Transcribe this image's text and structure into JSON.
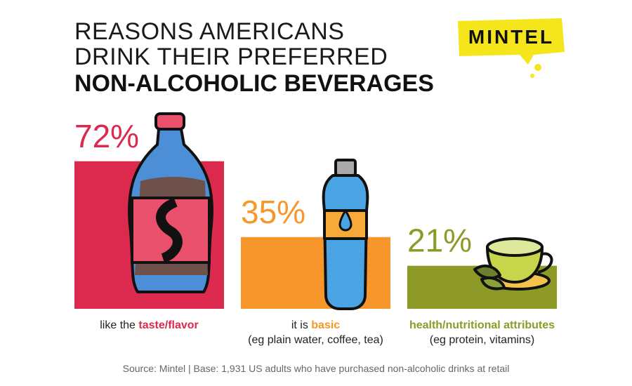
{
  "chart_data": {
    "type": "bar",
    "title": {
      "lines": [
        "REASONS AMERICANS",
        "DRINK THEIR PREFERRED"
      ],
      "emphasis": "NON-ALCOHOLIC BEVERAGES"
    },
    "logo": "MINTEL",
    "categories": [
      {
        "lead": "like the",
        "key": "taste/flavor",
        "note": null
      },
      {
        "lead": "it is",
        "key": "basic",
        "note": "(eg plain water, coffee, tea)"
      },
      {
        "lead": null,
        "key": "health/nutritional attributes",
        "note": "(eg protein, vitamins)"
      }
    ],
    "values": [
      72,
      35,
      21
    ],
    "value_labels": [
      "72%",
      "35%",
      "21%"
    ],
    "colors": [
      "#dc2a4e",
      "#f7962b",
      "#8e9a27"
    ],
    "ylim": [
      0,
      100
    ],
    "source": "Source: Mintel  |  Base: 1,931 US adults who have purchased non-alcoholic drinks at retail"
  }
}
